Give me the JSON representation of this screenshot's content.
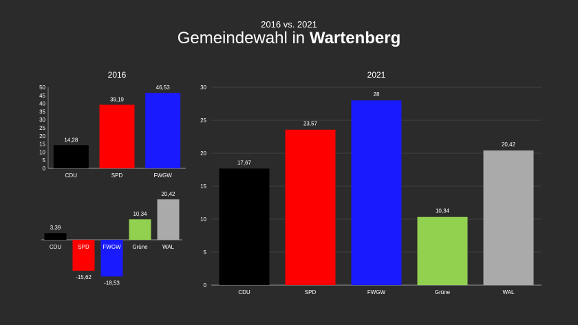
{
  "header": {
    "subtitle": "2016 vs. 2021",
    "title_prefix": "Gemeindewahl in ",
    "title_bold": "Wartenberg"
  },
  "colors": {
    "background": "#2b2b2b",
    "CDU": "#000000",
    "SPD": "#ff0000",
    "FWGW": "#1a1aff",
    "Grüne": "#92d050",
    "WAL": "#aaaaaa"
  },
  "chart_data": [
    {
      "type": "bar",
      "title": "2016",
      "categories": [
        "CDU",
        "SPD",
        "FWGW"
      ],
      "values": [
        14.28,
        39.19,
        46.53
      ],
      "value_labels": [
        "14,28",
        "39,19",
        "46,53"
      ],
      "ylim": [
        0,
        50
      ],
      "yticks": [
        0,
        5,
        10,
        15,
        20,
        25,
        30,
        35,
        40,
        45,
        50
      ],
      "grid": false,
      "xlabel": "",
      "ylabel": ""
    },
    {
      "type": "bar",
      "title": "",
      "categories": [
        "CDU",
        "SPD",
        "FWGW",
        "Grüne",
        "WAL"
      ],
      "values": [
        3.39,
        -15.62,
        -18.53,
        10.34,
        20.42
      ],
      "value_labels": [
        "3,39",
        "-15,62",
        "-18,53",
        "10,34",
        "20,42"
      ],
      "ylim": [
        -20,
        21
      ],
      "grid": false,
      "xlabel": "",
      "ylabel": ""
    },
    {
      "type": "bar",
      "title": "2021",
      "categories": [
        "CDU",
        "SPD",
        "FWGW",
        "Grüne",
        "WAL"
      ],
      "values": [
        17.67,
        23.57,
        28,
        10.34,
        20.42
      ],
      "value_labels": [
        "17,67",
        "23,57",
        "28",
        "10,34",
        "20,42"
      ],
      "ylim": [
        0,
        30
      ],
      "yticks": [
        0,
        5,
        10,
        15,
        20,
        25,
        30
      ],
      "grid": true,
      "xlabel": "",
      "ylabel": ""
    }
  ]
}
